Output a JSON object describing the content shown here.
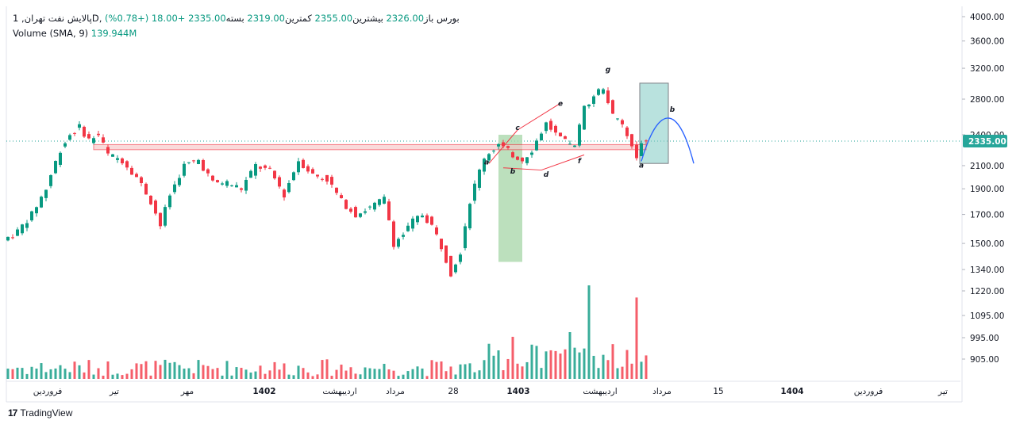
{
  "legend": {
    "symbol": "پالایش نفت تهران, 1D, بورس",
    "open_label": "باز",
    "open": "2326.00",
    "high_label": "بیشترین",
    "high": "2355.00",
    "low_label": "کمترین",
    "low": "2319.00",
    "close_label": "بسته",
    "close": "2335.00",
    "change": "+18.00 (+0.78%)",
    "volume_label": "Volume",
    "volume_params": "(SMA, 9)",
    "volume_value": "139.944M"
  },
  "branding": {
    "logo_mark": "17",
    "logo_text": "TradingView"
  },
  "colors": {
    "up": "#089981",
    "down": "#f23645",
    "zone_fill": "#f7c7c7",
    "green_box": "#a5d6a7",
    "blue_box": "#80cbc4",
    "projection": "#2962ff",
    "last_price_line": "#26a69a"
  },
  "chart_data": {
    "type": "candlestick",
    "price_axis": {
      "ticks": [
        4000,
        3600,
        3200,
        2800,
        2400,
        2100,
        1900,
        1700,
        1500,
        1340,
        1220,
        1095,
        995,
        905
      ],
      "labels": [
        "4000.00",
        "3600.00",
        "3200.00",
        "2800.00",
        "2400.00",
        "2100.00",
        "1900.00",
        "1700.00",
        "1500.00",
        "1340.00",
        "1220.00",
        "1095.00",
        "995.00",
        "905.00"
      ],
      "scale": "log"
    },
    "last_price": {
      "value": 2335,
      "label": "2335.00"
    },
    "time_axis": {
      "labels": [
        "فروردین",
        "تیر",
        "مهر",
        "1402",
        "اردیبهشت",
        "مرداد",
        "28",
        "1403",
        "اردیبهشت",
        "مرداد",
        "15",
        "1404",
        "فروردین",
        "تیر"
      ],
      "bold": [
        false,
        false,
        false,
        true,
        false,
        false,
        false,
        true,
        false,
        false,
        false,
        true,
        false,
        false
      ]
    },
    "price_path": [
      [
        0,
        1520
      ],
      [
        3,
        1580
      ],
      [
        6,
        1700
      ],
      [
        9,
        1900
      ],
      [
        12,
        2250
      ],
      [
        14,
        2400
      ],
      [
        16,
        2480
      ],
      [
        18,
        2350
      ],
      [
        20,
        2400
      ],
      [
        22,
        2200
      ],
      [
        25,
        2150
      ],
      [
        28,
        2000
      ],
      [
        31,
        1800
      ],
      [
        33,
        1620
      ],
      [
        35,
        1850
      ],
      [
        38,
        2100
      ],
      [
        41,
        2150
      ],
      [
        44,
        1950
      ],
      [
        47,
        1950
      ],
      [
        50,
        1900
      ],
      [
        53,
        2100
      ],
      [
        56,
        2050
      ],
      [
        59,
        1850
      ],
      [
        62,
        2150
      ],
      [
        65,
        2020
      ],
      [
        68,
        1980
      ],
      [
        71,
        1800
      ],
      [
        74,
        1700
      ],
      [
        77,
        1750
      ],
      [
        80,
        1820
      ],
      [
        82,
        1500
      ],
      [
        84,
        1560
      ],
      [
        86,
        1650
      ],
      [
        88,
        1700
      ],
      [
        90,
        1620
      ],
      [
        92,
        1480
      ],
      [
        94,
        1320
      ],
      [
        96,
        1450
      ],
      [
        98,
        1800
      ],
      [
        101,
        2180
      ],
      [
        104,
        2300
      ],
      [
        107,
        2200
      ],
      [
        109,
        2150
      ],
      [
        111,
        2250
      ],
      [
        114,
        2520
      ],
      [
        117,
        2350
      ],
      [
        120,
        2270
      ],
      [
        122,
        2700
      ],
      [
        124,
        2850
      ],
      [
        126,
        2950
      ],
      [
        128,
        2600
      ],
      [
        130,
        2500
      ],
      [
        132,
        2270
      ],
      [
        133,
        2160
      ],
      [
        134,
        2335
      ]
    ],
    "volume_scale": {
      "min": 0,
      "max": 100
    },
    "volume_spikes": [
      {
        "i": 122,
        "v": 100
      },
      {
        "i": 132,
        "v": 87
      },
      {
        "i": 106,
        "v": 45
      },
      {
        "i": 118,
        "v": 50
      }
    ],
    "annotations": {
      "wave_labels": [
        "a",
        "b",
        "c",
        "d",
        "e",
        "f",
        "g",
        "a",
        "b"
      ],
      "zone": {
        "low": 2250,
        "high": 2300,
        "from_index": 18,
        "to_index": 134
      },
      "green_box": {
        "from_index": 103,
        "to_index": 108,
        "top": 2400,
        "bottom": 1385
      },
      "blue_box": {
        "from_index": 133,
        "to_index": 139,
        "top": 3000,
        "bottom": 2120
      }
    }
  }
}
